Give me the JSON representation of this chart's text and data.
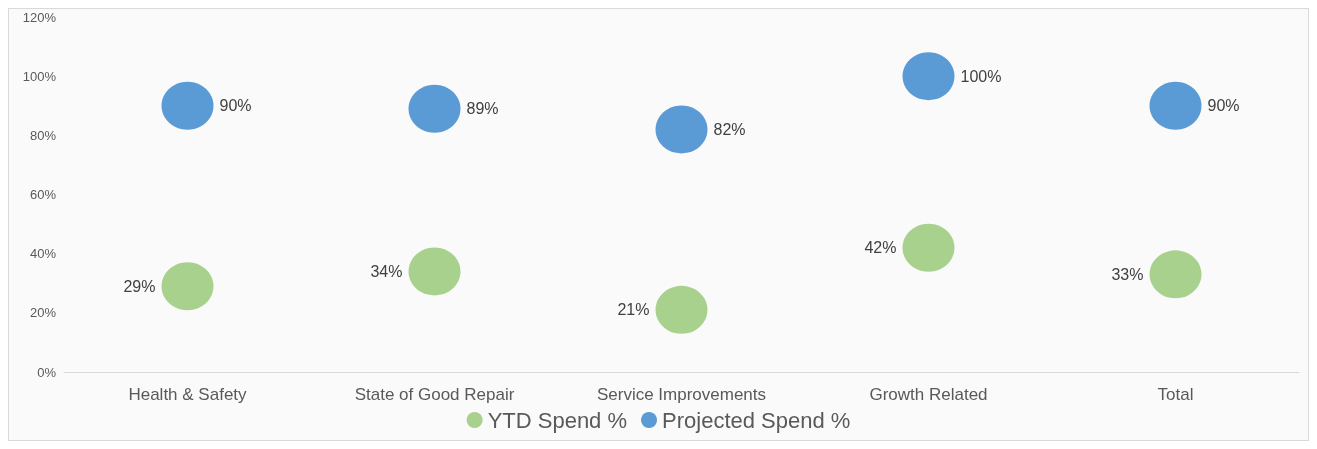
{
  "chart_data": {
    "type": "scatter",
    "categories": [
      "Health & Safety",
      "State of Good Repair",
      "Service Improvements",
      "Growth Related",
      "Total"
    ],
    "series": [
      {
        "name": "YTD Spend %",
        "color": "#a9d18e",
        "values": [
          29,
          34,
          21,
          42,
          33
        ],
        "value_labels": [
          "29%",
          "34%",
          "21%",
          "42%",
          "33%"
        ]
      },
      {
        "name": "Projected Spend %",
        "color": "#5b9bd5",
        "values": [
          90,
          89,
          82,
          100,
          90
        ],
        "value_labels": [
          "90%",
          "89%",
          "82%",
          "100%",
          "90%"
        ]
      }
    ],
    "ylim": [
      0,
      120
    ],
    "yticks": [
      {
        "value": 0,
        "label": "0%"
      },
      {
        "value": 20,
        "label": "20%"
      },
      {
        "value": 40,
        "label": "40%"
      },
      {
        "value": 60,
        "label": "60%"
      },
      {
        "value": 80,
        "label": "80%"
      },
      {
        "value": 100,
        "label": "100%"
      },
      {
        "value": 120,
        "label": "120%"
      }
    ],
    "grid": false,
    "legend": "bottom",
    "marker": "circle"
  }
}
